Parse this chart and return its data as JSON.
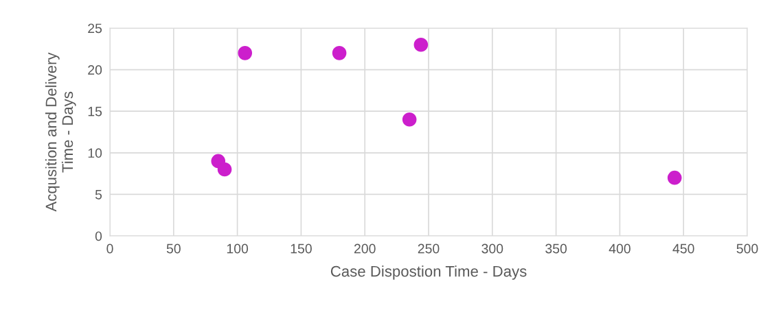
{
  "chart_data": {
    "type": "scatter",
    "xlabel": "Case Dispostion Time - Days",
    "ylabel": "Acqusition and Delivery\nTime - Days",
    "x": [
      85,
      90,
      106,
      180,
      244,
      235,
      443
    ],
    "values": [
      9,
      8,
      22,
      22,
      23,
      14,
      7
    ],
    "color": "#cc1fcc",
    "marker": "circle",
    "xlim": [
      0,
      500
    ],
    "xticks": [
      0,
      50,
      100,
      150,
      200,
      250,
      300,
      350,
      400,
      450,
      500
    ],
    "ylim": [
      0,
      25
    ],
    "yticks": [
      0,
      5,
      10,
      15,
      20,
      25
    ],
    "grid": true
  }
}
